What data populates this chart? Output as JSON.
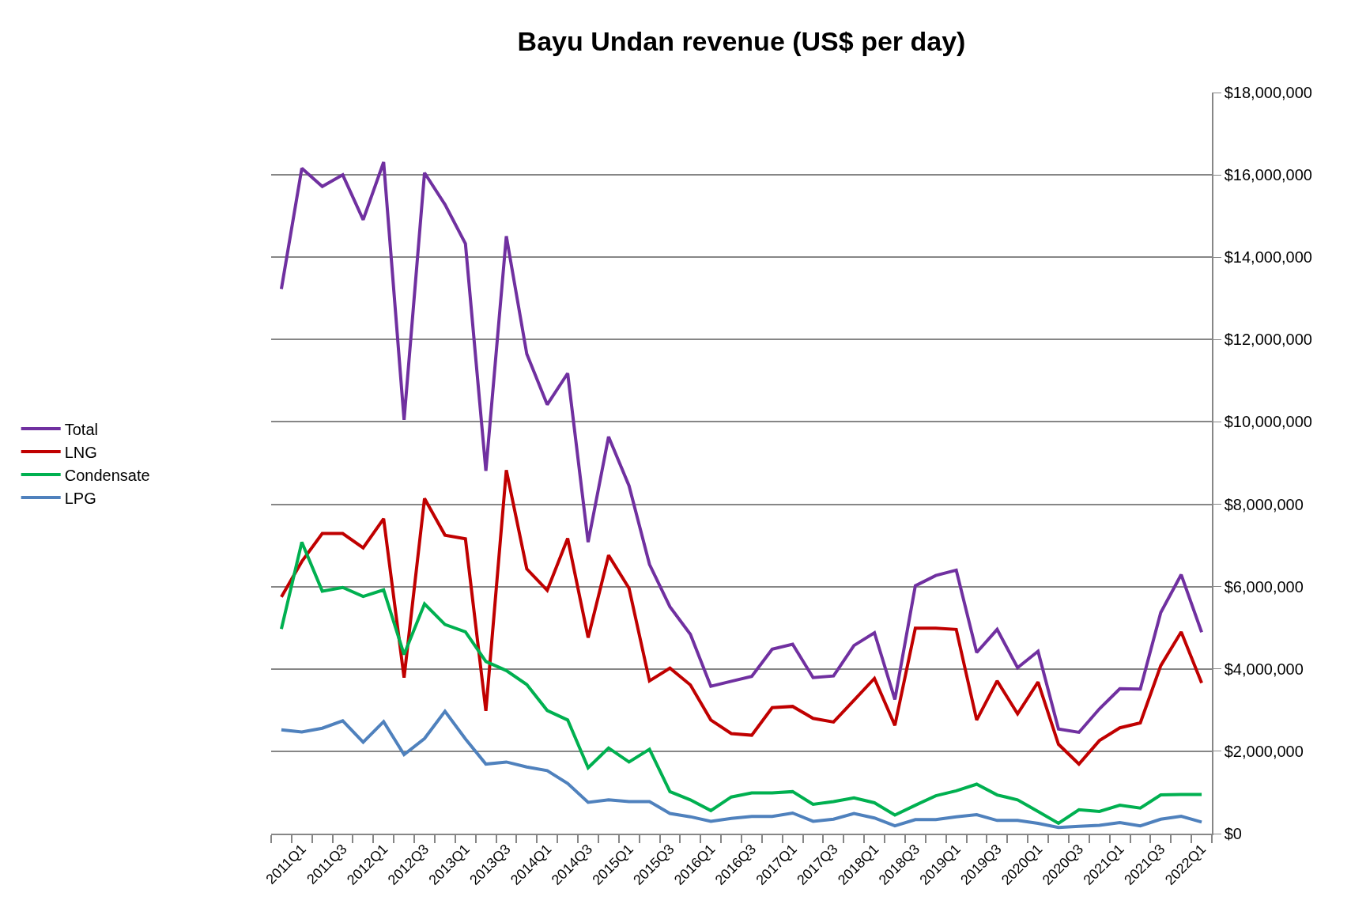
{
  "chart_data": {
    "type": "line",
    "title": "Bayu Undan revenue (US$ per day)",
    "categories": [
      null,
      "2011Q1",
      null,
      "2011Q3",
      null,
      "2012Q1",
      null,
      "2012Q3",
      null,
      "2013Q1",
      null,
      "2013Q3",
      null,
      "2014Q1",
      null,
      "2014Q3",
      null,
      "2015Q1",
      null,
      "2015Q3",
      null,
      "2016Q1",
      null,
      "2016Q3",
      null,
      "2017Q1",
      null,
      "2017Q3",
      null,
      "2018Q1",
      null,
      "2018Q3",
      null,
      "2019Q1",
      null,
      "2019Q3",
      null,
      "2020Q1",
      null,
      "2020Q3",
      null,
      "2021Q1",
      null,
      "2021Q3",
      null,
      "2022Q1"
    ],
    "series": [
      {
        "name": "Total",
        "color": "#7030a0",
        "values": [
          13230000,
          16160000,
          15720000,
          16000000,
          14910000,
          16310000,
          10050000,
          16050000,
          15280000,
          14330000,
          8810000,
          14510000,
          11650000,
          10420000,
          11180000,
          7080000,
          9640000,
          8450000,
          6540000,
          5510000,
          4840000,
          3580000,
          3700000,
          3820000,
          4480000,
          4600000,
          3790000,
          3830000,
          4570000,
          4880000,
          3260000,
          6020000,
          6270000,
          6400000,
          4400000,
          4960000,
          4030000,
          4430000,
          2540000,
          2460000,
          3030000,
          3520000,
          3510000,
          5370000,
          6290000,
          4890000
        ]
      },
      {
        "name": "LNG",
        "color": "#c00000",
        "values": [
          5750000,
          6610000,
          7290000,
          7290000,
          6940000,
          7650000,
          3790000,
          8140000,
          7250000,
          7160000,
          2980000,
          8830000,
          6430000,
          5910000,
          7170000,
          4760000,
          6760000,
          5960000,
          3710000,
          4020000,
          3610000,
          2760000,
          2430000,
          2390000,
          3060000,
          3090000,
          2800000,
          2710000,
          3240000,
          3770000,
          2630000,
          4990000,
          4990000,
          4960000,
          2760000,
          3710000,
          2910000,
          3680000,
          2170000,
          1690000,
          2260000,
          2570000,
          2690000,
          4080000,
          4900000,
          3660000
        ]
      },
      {
        "name": "Condensate",
        "color": "#00b050",
        "values": [
          4970000,
          7080000,
          5890000,
          5980000,
          5760000,
          5920000,
          4350000,
          5580000,
          5080000,
          4900000,
          4180000,
          3960000,
          3620000,
          2990000,
          2760000,
          1600000,
          2080000,
          1740000,
          2050000,
          1020000,
          820000,
          560000,
          890000,
          990000,
          990000,
          1020000,
          710000,
          780000,
          870000,
          750000,
          450000,
          690000,
          920000,
          1040000,
          1200000,
          940000,
          820000,
          540000,
          250000,
          580000,
          540000,
          690000,
          620000,
          940000,
          950000,
          950000
        ]
      },
      {
        "name": "LPG",
        "color": "#4f81bd",
        "values": [
          2520000,
          2470000,
          2560000,
          2740000,
          2220000,
          2720000,
          1920000,
          2310000,
          2970000,
          2300000,
          1690000,
          1740000,
          1620000,
          1530000,
          1220000,
          760000,
          820000,
          780000,
          780000,
          490000,
          410000,
          300000,
          370000,
          420000,
          420000,
          500000,
          300000,
          350000,
          490000,
          380000,
          190000,
          340000,
          340000,
          410000,
          460000,
          320000,
          320000,
          250000,
          150000,
          180000,
          200000,
          270000,
          190000,
          350000,
          420000,
          280000
        ]
      }
    ],
    "ylim": [
      0,
      18000000
    ],
    "yticks": [
      {
        "value": 0,
        "label": "$0"
      },
      {
        "value": 2000000,
        "label": "$2,000,000"
      },
      {
        "value": 4000000,
        "label": "$4,000,000"
      },
      {
        "value": 6000000,
        "label": "$6,000,000"
      },
      {
        "value": 8000000,
        "label": "$8,000,000"
      },
      {
        "value": 10000000,
        "label": "$10,000,000"
      },
      {
        "value": 12000000,
        "label": "$12,000,000"
      },
      {
        "value": 14000000,
        "label": "$14,000,000"
      },
      {
        "value": 16000000,
        "label": "$16,000,000"
      },
      {
        "value": 18000000,
        "label": "$18,000,000"
      }
    ],
    "grid": "y",
    "legend": "left",
    "marker": "none",
    "line_style": "solid"
  }
}
